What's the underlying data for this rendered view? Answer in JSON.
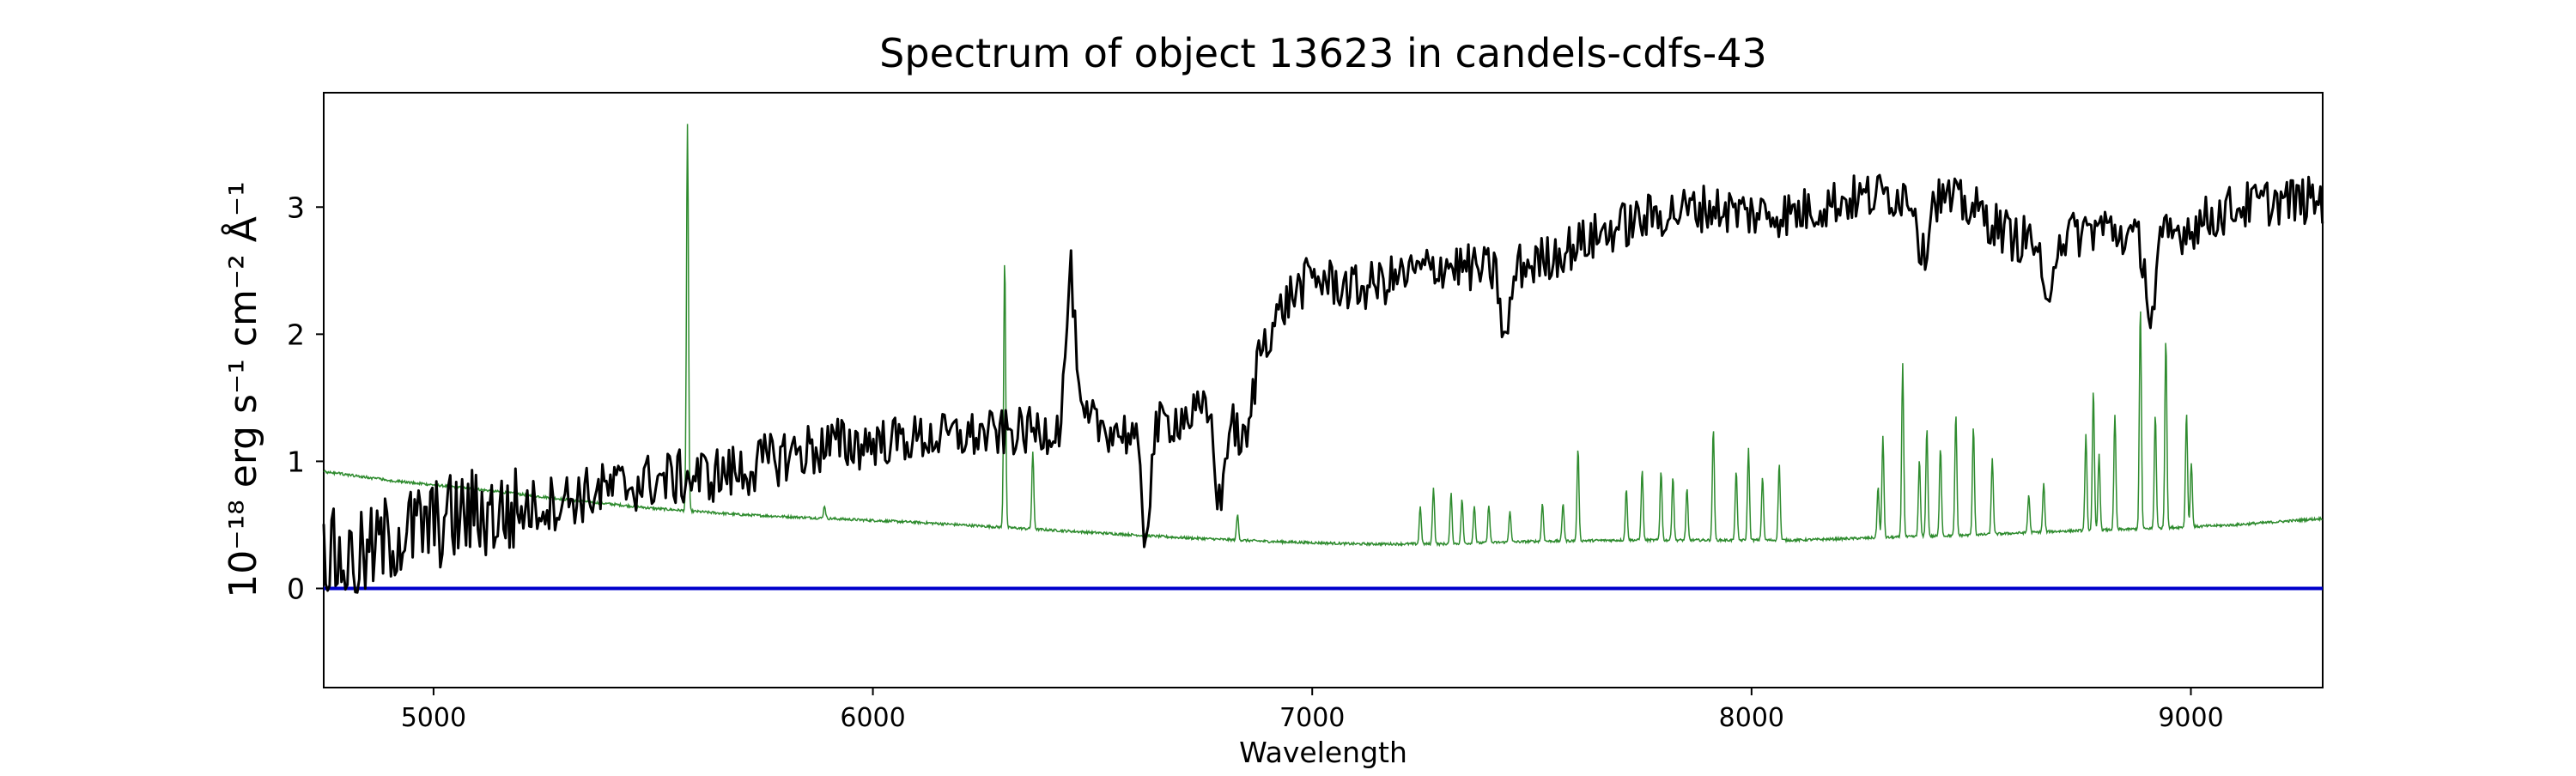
{
  "chart_data": {
    "type": "line",
    "title": "Spectrum of object 13623 in candels-cdfs-43",
    "xlabel": "Wavelength",
    "ylabel": "10⁻¹⁸ erg s⁻¹ cm⁻² Å⁻¹",
    "xlim": [
      4750,
      9300
    ],
    "ylim": [
      -0.78,
      3.9
    ],
    "xticks": [
      5000,
      6000,
      7000,
      8000,
      9000
    ],
    "yticks": [
      0,
      1,
      2,
      3
    ],
    "grid": false,
    "colors": {
      "spectrum": "#000000",
      "sky": "#2e8b2e",
      "zero": "#0000cc"
    },
    "series": [
      {
        "values_note_omitted": true,
        "anchors": [
          [
            4750,
            0.3
          ],
          [
            4800,
            0.2
          ],
          [
            4850,
            0.25
          ],
          [
            4900,
            0.4
          ],
          [
            4950,
            0.45
          ],
          [
            5000,
            0.5
          ],
          [
            5050,
            0.55
          ],
          [
            5100,
            0.6
          ],
          [
            5150,
            0.58
          ],
          [
            5200,
            0.62
          ],
          [
            5300,
            0.7
          ],
          [
            5400,
            0.78
          ],
          [
            5500,
            0.85
          ],
          [
            5600,
            0.88
          ],
          [
            5700,
            0.92
          ],
          [
            5800,
            1.05
          ],
          [
            5900,
            1.12
          ],
          [
            6000,
            1.15
          ],
          [
            6100,
            1.18
          ],
          [
            6200,
            1.2
          ],
          [
            6300,
            1.22
          ],
          [
            6400,
            1.25
          ],
          [
            6500,
            1.3
          ],
          [
            6600,
            1.2
          ],
          [
            6700,
            1.35
          ],
          [
            6800,
            1.4
          ],
          [
            6850,
            1.1
          ],
          [
            6880,
            1.9
          ],
          [
            6950,
            2.3
          ],
          [
            7000,
            2.45
          ],
          [
            7100,
            2.35
          ],
          [
            7200,
            2.45
          ],
          [
            7300,
            2.55
          ],
          [
            7400,
            2.5
          ],
          [
            7500,
            2.55
          ],
          [
            7600,
            2.7
          ],
          [
            7700,
            2.85
          ],
          [
            7800,
            2.95
          ],
          [
            7900,
            3.0
          ],
          [
            8000,
            2.95
          ],
          [
            8100,
            2.95
          ],
          [
            8200,
            3.05
          ],
          [
            8300,
            3.1
          ],
          [
            8400,
            3.1
          ],
          [
            8500,
            3.0
          ],
          [
            8600,
            2.75
          ],
          [
            8700,
            2.75
          ],
          [
            8800,
            2.85
          ],
          [
            8900,
            2.7
          ],
          [
            9000,
            2.85
          ],
          [
            9100,
            3.0
          ],
          [
            9200,
            3.05
          ],
          [
            9300,
            3.05
          ]
        ],
        "features": [
          [
            6450,
            1.2
          ],
          [
            6620,
            -0.8
          ],
          [
            6790,
            -0.75
          ],
          [
            7440,
            -0.6
          ],
          [
            8390,
            -0.5
          ],
          [
            8670,
            -0.6
          ],
          [
            8910,
            -0.6
          ]
        ]
      },
      {
        "anchors": [
          [
            4750,
            0.92
          ],
          [
            4900,
            0.85
          ],
          [
            5100,
            0.78
          ],
          [
            5300,
            0.7
          ],
          [
            5500,
            0.63
          ],
          [
            5700,
            0.58
          ],
          [
            5900,
            0.55
          ],
          [
            6100,
            0.52
          ],
          [
            6300,
            0.48
          ],
          [
            6500,
            0.44
          ],
          [
            6700,
            0.4
          ],
          [
            6900,
            0.37
          ],
          [
            7100,
            0.35
          ],
          [
            7300,
            0.35
          ],
          [
            7500,
            0.37
          ],
          [
            7700,
            0.38
          ],
          [
            7900,
            0.38
          ],
          [
            8100,
            0.38
          ],
          [
            8300,
            0.4
          ],
          [
            8500,
            0.42
          ],
          [
            8700,
            0.45
          ],
          [
            8900,
            0.47
          ],
          [
            9100,
            0.5
          ],
          [
            9300,
            0.55
          ]
        ],
        "spikes": [
          [
            5578,
            3.05
          ],
          [
            5890,
            0.1
          ],
          [
            6300,
            2.12
          ],
          [
            6364,
            0.6
          ],
          [
            6830,
            0.2
          ],
          [
            7246,
            0.3
          ],
          [
            7276,
            0.45
          ],
          [
            7316,
            0.4
          ],
          [
            7341,
            0.35
          ],
          [
            7369,
            0.3
          ],
          [
            7402,
            0.3
          ],
          [
            7450,
            0.25
          ],
          [
            7524,
            0.3
          ],
          [
            7571,
            0.3
          ],
          [
            7605,
            0.72
          ],
          [
            7715,
            0.4
          ],
          [
            7751,
            0.55
          ],
          [
            7794,
            0.55
          ],
          [
            7821,
            0.5
          ],
          [
            7853,
            0.4
          ],
          [
            7913,
            0.88
          ],
          [
            7965,
            0.55
          ],
          [
            7993,
            0.72
          ],
          [
            8025,
            0.5
          ],
          [
            8063,
            0.6
          ],
          [
            8288,
            0.4
          ],
          [
            8299,
            0.8
          ],
          [
            8344,
            1.36
          ],
          [
            8382,
            0.6
          ],
          [
            8399,
            0.85
          ],
          [
            8430,
            0.7
          ],
          [
            8465,
            0.95
          ],
          [
            8505,
            0.85
          ],
          [
            8548,
            0.6
          ],
          [
            8631,
            0.3
          ],
          [
            8665,
            0.38
          ],
          [
            8761,
            0.75
          ],
          [
            8778,
            1.1
          ],
          [
            8791,
            0.6
          ],
          [
            8827,
            0.9
          ],
          [
            8885,
            1.75
          ],
          [
            8919,
            0.9
          ],
          [
            8943,
            1.5
          ],
          [
            8990,
            0.9
          ],
          [
            9001,
            0.5
          ]
        ]
      }
    ]
  }
}
